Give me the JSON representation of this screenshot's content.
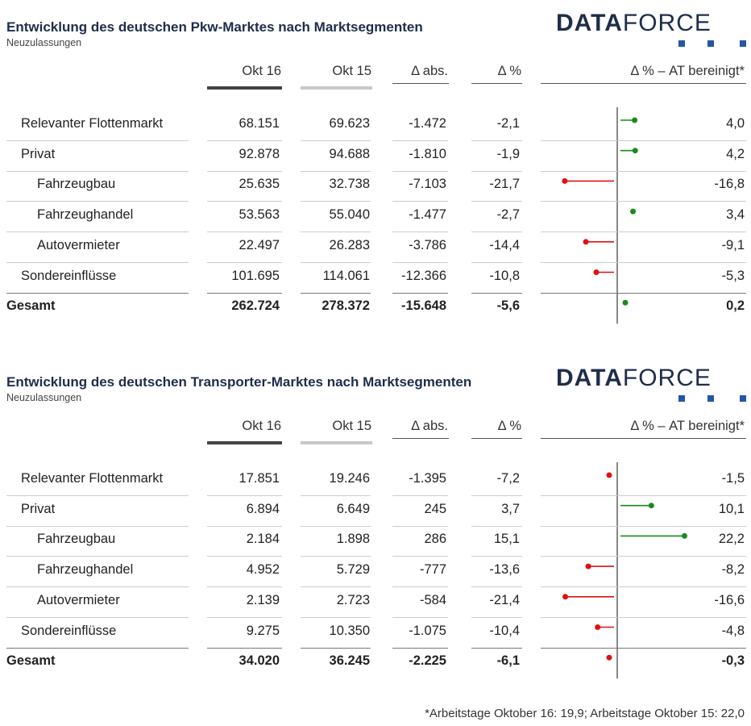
{
  "columns": [
    "Okt 16",
    "Okt 15",
    "Δ abs.",
    "Δ %",
    "Δ % – AT bereinigt*"
  ],
  "logo": "DATAFORCE",
  "colors": {
    "positive": "#1a8a1a",
    "negative": "#e01010",
    "okt16_bar": "#444444",
    "okt15_bar": "#c8c8c8",
    "title": "#1f2d4a"
  },
  "chart_data": [
    {
      "type": "table",
      "title": "Entwicklung des deutschen Pkw-Marktes nach Marktsegmenten",
      "subtitle": "Neuzulassungen",
      "rows": [
        {
          "label": "Relevanter Flottenmarkt",
          "level": 0,
          "okt16": "68.151",
          "okt15": "69.623",
          "abs": "-1.472",
          "pct": "-2,1",
          "adj": "4,0",
          "adj_value": 4.0
        },
        {
          "label": "Privat",
          "level": 0,
          "okt16": "92.878",
          "okt15": "94.688",
          "abs": "-1.810",
          "pct": "-1,9",
          "adj": "4,2",
          "adj_value": 4.2
        },
        {
          "label": "Fahrzeugbau",
          "level": 1,
          "okt16": "25.635",
          "okt15": "32.738",
          "abs": "-7.103",
          "pct": "-21,7",
          "adj": "-16,8",
          "adj_value": -16.8
        },
        {
          "label": "Fahrzeughandel",
          "level": 1,
          "okt16": "53.563",
          "okt15": "55.040",
          "abs": "-1.477",
          "pct": "-2,7",
          "adj": "3,4",
          "adj_value": 3.4
        },
        {
          "label": "Autovermieter",
          "level": 1,
          "okt16": "22.497",
          "okt15": "26.283",
          "abs": "-3.786",
          "pct": "-14,4",
          "adj": "-9,1",
          "adj_value": -9.1
        },
        {
          "label": "Sondereinflüsse",
          "level": 0,
          "okt16": "101.695",
          "okt15": "114.061",
          "abs": "-12.366",
          "pct": "-10,8",
          "adj": "-5,3",
          "adj_value": -5.3
        },
        {
          "label": "Gesamt",
          "level": -1,
          "okt16": "262.724",
          "okt15": "278.372",
          "abs": "-15.648",
          "pct": "-5,6",
          "adj": "0,2",
          "adj_value": 0.2
        }
      ]
    },
    {
      "type": "table",
      "title": "Entwicklung des deutschen Transporter-Marktes nach Marktsegmenten",
      "subtitle": "Neuzulassungen",
      "rows": [
        {
          "label": "Relevanter Flottenmarkt",
          "level": 0,
          "okt16": "17.851",
          "okt15": "19.246",
          "abs": "-1.395",
          "pct": "-7,2",
          "adj": "-1,5",
          "adj_value": -1.5
        },
        {
          "label": "Privat",
          "level": 0,
          "okt16": "6.894",
          "okt15": "6.649",
          "abs": "245",
          "pct": "3,7",
          "adj": "10,1",
          "adj_value": 10.1
        },
        {
          "label": "Fahrzeugbau",
          "level": 1,
          "okt16": "2.184",
          "okt15": "1.898",
          "abs": "286",
          "pct": "15,1",
          "adj": "22,2",
          "adj_value": 22.2
        },
        {
          "label": "Fahrzeughandel",
          "level": 1,
          "okt16": "4.952",
          "okt15": "5.729",
          "abs": "-777",
          "pct": "-13,6",
          "adj": "-8,2",
          "adj_value": -8.2
        },
        {
          "label": "Autovermieter",
          "level": 1,
          "okt16": "2.139",
          "okt15": "2.723",
          "abs": "-584",
          "pct": "-21,4",
          "adj": "-16,6",
          "adj_value": -16.6
        },
        {
          "label": "Sondereinflüsse",
          "level": 0,
          "okt16": "9.275",
          "okt15": "10.350",
          "abs": "-1.075",
          "pct": "-10,4",
          "adj": "-4,8",
          "adj_value": -4.8
        },
        {
          "label": "Gesamt",
          "level": -1,
          "okt16": "34.020",
          "okt15": "36.245",
          "abs": "-2.225",
          "pct": "-6,1",
          "adj": "-0,3",
          "adj_value": -0.3
        }
      ]
    }
  ],
  "footnote": "*Arbeitstage Oktober 16: 19,9; Arbeitstage Oktober 15: 22,0"
}
